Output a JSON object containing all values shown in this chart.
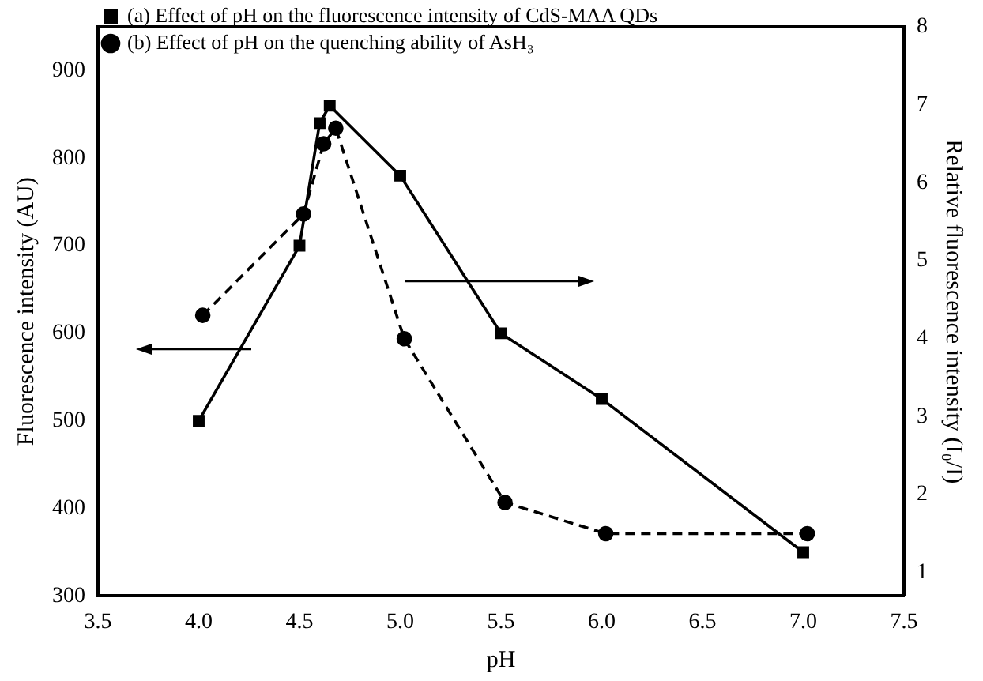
{
  "chart_data": {
    "type": "line",
    "xlabel": "pH",
    "ylabel": "Fluorescence intensity (AU)",
    "y2label": "Relative fluorescence intensity (I₀/I)",
    "xlim": [
      3.5,
      7.5
    ],
    "xticks": [
      3.5,
      {
        "value": 4,
        "label": "4.0"
      },
      4.5,
      {
        "value": 5,
        "label": "5.0"
      },
      5.5,
      {
        "value": 6,
        "label": "6.0"
      },
      6.5,
      {
        "value": 7,
        "label": "7.0"
      },
      7.5
    ],
    "ylim": [
      300,
      950
    ],
    "yticks": [
      300,
      400,
      500,
      600,
      700,
      800,
      900
    ],
    "y2lim": [
      0.7,
      8
    ],
    "y2ticks": [
      1,
      2,
      3,
      4,
      5,
      6,
      7,
      8
    ],
    "legend": "top left",
    "grid": false,
    "series": [
      {
        "name": "(a) Effect of pH on the fluorescence intensity of CdS-MAA QDs",
        "color": "#000000",
        "marker": "square",
        "line_style": "solid",
        "x": [
          4.0,
          4.5,
          4.6,
          4.65,
          5.0,
          5.5,
          6.0,
          7.0
        ],
        "values": [
          500,
          700,
          840,
          860,
          780,
          600,
          525,
          350
        ]
      },
      {
        "name": "(b) Effect of pH on the quenching ability of AsH₃",
        "color": "#000000",
        "marker": "circle",
        "line_style": "dashed",
        "axis": "y2",
        "x": [
          4.02,
          4.52,
          4.62,
          4.68,
          5.02,
          5.52,
          6.02,
          7.02
        ],
        "values": [
          4.3,
          5.6,
          6.5,
          6.7,
          4.0,
          1.9,
          1.5,
          1.5
        ]
      }
    ]
  }
}
